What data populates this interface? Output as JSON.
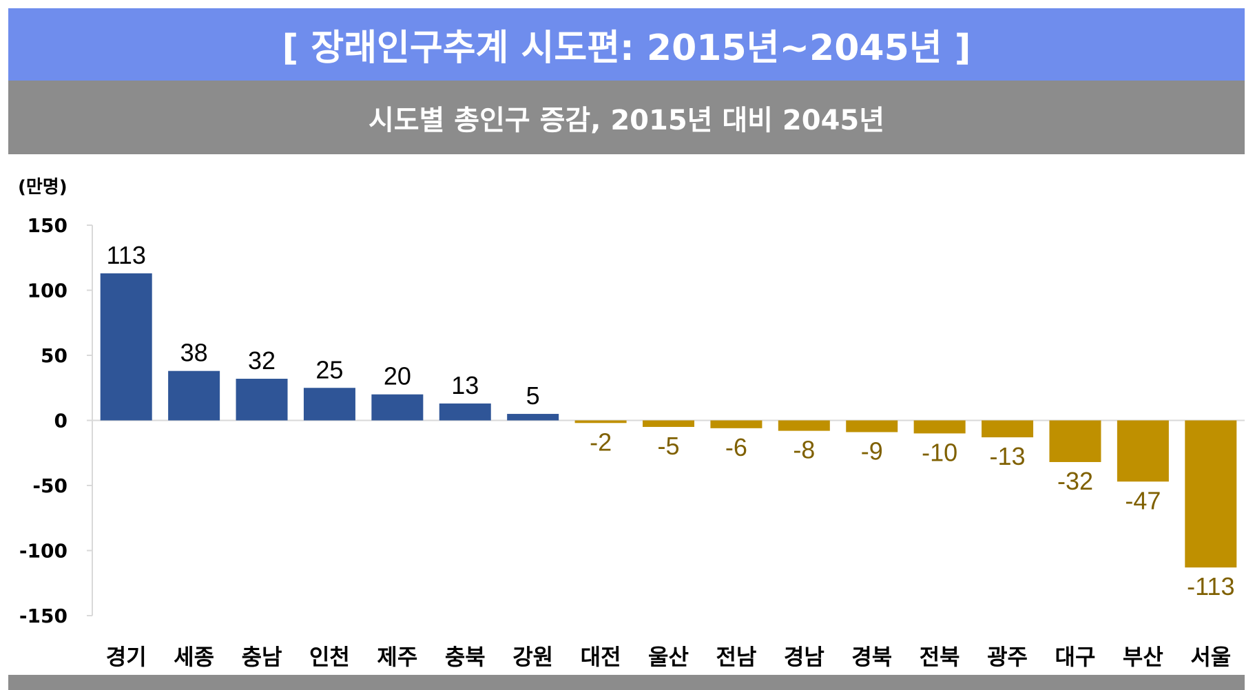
{
  "header": {
    "title": "[ 장래인구추계 시도편: 2015년~2045년 ]",
    "subtitle": "시도별 총인구 증감, 2015년 대비 2045년"
  },
  "chart_data": {
    "type": "bar",
    "title": "시도별 총인구 증감, 2015년 대비 2045년",
    "ylabel": "(만명)",
    "xlabel": "",
    "ylim": [
      -150,
      150
    ],
    "yticks": [
      150,
      100,
      50,
      0,
      -50,
      -100,
      -150
    ],
    "categories": [
      "경기",
      "세종",
      "충남",
      "인천",
      "제주",
      "충북",
      "강원",
      "대전",
      "울산",
      "전남",
      "경남",
      "경북",
      "전북",
      "광주",
      "대구",
      "부산",
      "서울"
    ],
    "values": [
      113,
      38,
      32,
      25,
      20,
      13,
      5,
      -2,
      -5,
      -6,
      -8,
      -9,
      -10,
      -13,
      -32,
      -47,
      -113
    ],
    "colors": {
      "positive": "#2f5597",
      "negative": "#bf9000"
    },
    "grid": false,
    "legend": "none"
  }
}
